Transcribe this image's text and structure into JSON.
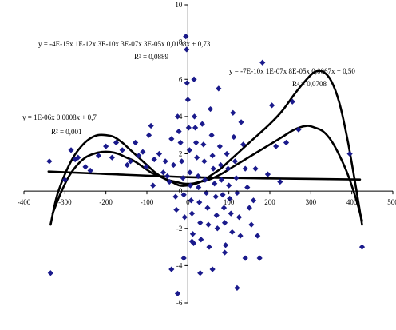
{
  "chart_data": {
    "type": "scatter",
    "xlim": [
      -400,
      500
    ],
    "ylim": [
      -6,
      10
    ],
    "x_ticks": [
      -400,
      -300,
      -200,
      -100,
      0,
      100,
      200,
      300,
      400,
      500
    ],
    "y_ticks": [
      -6,
      -4,
      -2,
      0,
      2,
      4,
      6,
      8,
      10
    ],
    "grid": false,
    "point_color": "#1a1a8c",
    "trend_color": "#000000",
    "points": [
      [
        -338,
        1.6
      ],
      [
        -335,
        -4.4
      ],
      [
        -300,
        0.6
      ],
      [
        -285,
        2.2
      ],
      [
        -275,
        1.7
      ],
      [
        -268,
        1.8
      ],
      [
        -250,
        1.3
      ],
      [
        -238,
        1.1
      ],
      [
        -218,
        1.9
      ],
      [
        -200,
        2.4
      ],
      [
        -185,
        1.8
      ],
      [
        -175,
        2.6
      ],
      [
        -160,
        2.2
      ],
      [
        -148,
        1.4
      ],
      [
        -140,
        1.6
      ],
      [
        -128,
        2.6
      ],
      [
        -120,
        1.9
      ],
      [
        -110,
        2.1
      ],
      [
        -102,
        1.3
      ],
      [
        -95,
        3.0
      ],
      [
        -90,
        3.5
      ],
      [
        -85,
        0.3
      ],
      [
        -82,
        1.7
      ],
      [
        -70,
        2.0
      ],
      [
        -60,
        1.0
      ],
      [
        -55,
        1.6
      ],
      [
        -50,
        0.8
      ],
      [
        -45,
        0.5
      ],
      [
        -40,
        2.8
      ],
      [
        -35,
        1.4
      ],
      [
        -30,
        -0.3
      ],
      [
        -28,
        -1.0
      ],
      [
        -25,
        4.0
      ],
      [
        -22,
        3.2
      ],
      [
        -18,
        2.6
      ],
      [
        -15,
        1.6
      ],
      [
        -12,
        0.7
      ],
      [
        -10,
        -0.2
      ],
      [
        -8,
        -1.4
      ],
      [
        -5,
        8.3
      ],
      [
        -3,
        7.6
      ],
      [
        -2,
        5.8
      ],
      [
        0,
        4.9
      ],
      [
        2,
        3.4
      ],
      [
        4,
        2.2
      ],
      [
        5,
        1.0
      ],
      [
        6,
        0.3
      ],
      [
        8,
        -0.5
      ],
      [
        10,
        -1.2
      ],
      [
        12,
        -2.3
      ],
      [
        14,
        -2.8
      ],
      [
        15,
        6.0
      ],
      [
        16,
        4.0
      ],
      [
        18,
        3.4
      ],
      [
        20,
        2.6
      ],
      [
        22,
        1.8
      ],
      [
        25,
        0.8
      ],
      [
        26,
        0.2
      ],
      [
        28,
        -0.6
      ],
      [
        30,
        -1.7
      ],
      [
        32,
        -2.6
      ],
      [
        35,
        3.6
      ],
      [
        38,
        2.5
      ],
      [
        40,
        1.6
      ],
      [
        42,
        0.6
      ],
      [
        45,
        -0.1
      ],
      [
        48,
        -0.9
      ],
      [
        50,
        -1.8
      ],
      [
        52,
        -3.0
      ],
      [
        55,
        4.4
      ],
      [
        58,
        3.0
      ],
      [
        60,
        1.9
      ],
      [
        62,
        1.2
      ],
      [
        65,
        0.4
      ],
      [
        68,
        -0.3
      ],
      [
        70,
        -1.3
      ],
      [
        72,
        -2.0
      ],
      [
        75,
        5.5
      ],
      [
        78,
        2.4
      ],
      [
        80,
        1.4
      ],
      [
        82,
        0.6
      ],
      [
        85,
        -0.2
      ],
      [
        88,
        -0.9
      ],
      [
        90,
        -1.7
      ],
      [
        92,
        -2.9
      ],
      [
        95,
        2.0
      ],
      [
        98,
        1.2
      ],
      [
        100,
        0.3
      ],
      [
        102,
        -0.4
      ],
      [
        105,
        -1.2
      ],
      [
        108,
        -2.2
      ],
      [
        110,
        4.2
      ],
      [
        112,
        2.9
      ],
      [
        115,
        1.6
      ],
      [
        118,
        0.7
      ],
      [
        120,
        -0.1
      ],
      [
        125,
        -1.4
      ],
      [
        128,
        -2.4
      ],
      [
        130,
        3.7
      ],
      [
        135,
        2.5
      ],
      [
        140,
        1.2
      ],
      [
        145,
        0.2
      ],
      [
        150,
        -0.9
      ],
      [
        155,
        -1.8
      ],
      [
        160,
        -0.5
      ],
      [
        165,
        1.2
      ],
      [
        170,
        -2.4
      ],
      [
        175,
        -3.6
      ],
      [
        182,
        6.9
      ],
      [
        195,
        0.9
      ],
      [
        205,
        4.6
      ],
      [
        215,
        2.4
      ],
      [
        225,
        0.5
      ],
      [
        240,
        2.6
      ],
      [
        255,
        4.8
      ],
      [
        270,
        3.3
      ],
      [
        395,
        2.0
      ],
      [
        425,
        -3.0
      ],
      [
        -40,
        -4.2
      ],
      [
        -25,
        -5.5
      ],
      [
        -10,
        -3.6
      ],
      [
        10,
        -2.7
      ],
      [
        30,
        -4.4
      ],
      [
        60,
        -4.2
      ],
      [
        90,
        -3.3
      ],
      [
        120,
        -5.2
      ],
      [
        140,
        -3.6
      ]
    ],
    "trendlines": [
      {
        "kind": "polynomial-6",
        "equation": "y = -4E-15x 1E-12x 3E-10x 3E-07x 3E-05x 0,0108x + 0,73",
        "r2": "R² = 0,0889",
        "curve": [
          [
            -335,
            -1.8
          ],
          [
            -320,
            -0.3
          ],
          [
            -300,
            0.9
          ],
          [
            -280,
            1.8
          ],
          [
            -260,
            2.4
          ],
          [
            -240,
            2.8
          ],
          [
            -220,
            3.0
          ],
          [
            -200,
            3.0
          ],
          [
            -180,
            2.9
          ],
          [
            -160,
            2.6
          ],
          [
            -140,
            2.2
          ],
          [
            -120,
            1.8
          ],
          [
            -100,
            1.4
          ],
          [
            -80,
            1.0
          ],
          [
            -60,
            0.7
          ],
          [
            -40,
            0.5
          ],
          [
            -20,
            0.3
          ],
          [
            0,
            0.3
          ],
          [
            20,
            0.4
          ],
          [
            40,
            0.6
          ],
          [
            60,
            0.9
          ],
          [
            80,
            1.2
          ],
          [
            100,
            1.6
          ],
          [
            130,
            2.2
          ],
          [
            160,
            2.8
          ],
          [
            200,
            3.6
          ],
          [
            230,
            4.3
          ],
          [
            260,
            5.2
          ],
          [
            290,
            6.0
          ],
          [
            310,
            6.4
          ],
          [
            330,
            6.4
          ],
          [
            350,
            5.9
          ],
          [
            370,
            4.7
          ],
          [
            390,
            2.7
          ],
          [
            410,
            0.2
          ],
          [
            425,
            -1.8
          ]
        ]
      },
      {
        "kind": "polynomial-4",
        "equation": "y = -7E-10x 1E-07x 8E-05x 0,0067x + 0,50",
        "r2": "R² = 0,0708",
        "curve": [
          [
            -330,
            -1.2
          ],
          [
            -310,
            -0.1
          ],
          [
            -290,
            0.8
          ],
          [
            -270,
            1.4
          ],
          [
            -250,
            1.8
          ],
          [
            -230,
            2.0
          ],
          [
            -210,
            2.1
          ],
          [
            -190,
            2.1
          ],
          [
            -170,
            2.0
          ],
          [
            -150,
            1.8
          ],
          [
            -130,
            1.6
          ],
          [
            -110,
            1.3
          ],
          [
            -90,
            1.0
          ],
          [
            -70,
            0.8
          ],
          [
            -50,
            0.6
          ],
          [
            -30,
            0.5
          ],
          [
            -10,
            0.4
          ],
          [
            10,
            0.4
          ],
          [
            30,
            0.5
          ],
          [
            50,
            0.6
          ],
          [
            80,
            0.9
          ],
          [
            110,
            1.3
          ],
          [
            140,
            1.7
          ],
          [
            170,
            2.1
          ],
          [
            200,
            2.5
          ],
          [
            230,
            2.9
          ],
          [
            260,
            3.3
          ],
          [
            290,
            3.5
          ],
          [
            310,
            3.4
          ],
          [
            330,
            3.2
          ],
          [
            350,
            2.7
          ],
          [
            370,
            1.9
          ],
          [
            390,
            0.9
          ],
          [
            410,
            -0.4
          ],
          [
            425,
            -1.6
          ]
        ]
      },
      {
        "kind": "linear",
        "equation": "y = 1E-06x 0,0008x + 0,7",
        "r2": "R² = 0,001",
        "curve": [
          [
            -340,
            1.05
          ],
          [
            -200,
            0.92
          ],
          [
            0,
            0.75
          ],
          [
            200,
            0.68
          ],
          [
            420,
            0.62
          ]
        ]
      }
    ]
  }
}
